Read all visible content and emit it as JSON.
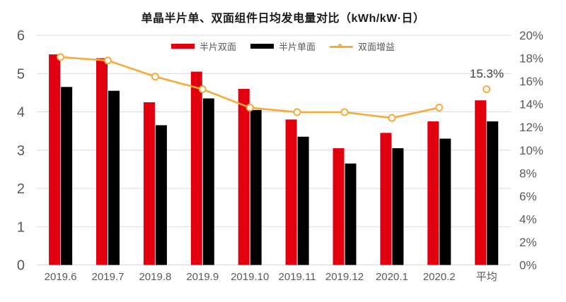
{
  "title": "单晶半片单、双面组件日均发电量对比（kWh/kW·日）",
  "annotation": {
    "text": "15.3%",
    "attached_to": "平均 line point"
  },
  "colors": {
    "bar_bifacial": "#e2000f",
    "bar_monofacial": "#000000",
    "line_gain": "#f5ab3a",
    "gridline": "#d9d9d9",
    "axis_text": "#595959",
    "xlabel_text": "#595959",
    "title_text": "#1a1a1a",
    "annotation_text": "#3f3f3f",
    "background": "#ffffff"
  },
  "chart_data": {
    "type": "bar",
    "subtype": "grouped-bar-with-secondary-axis-line",
    "title": "单晶半片单、双面组件日均发电量对比（kWh/kW·日）",
    "categories": [
      "2019.6",
      "2019.7",
      "2019.8",
      "2019.9",
      "2019.10",
      "2019.11",
      "2019.12",
      "2020.1",
      "2020.2",
      "平均"
    ],
    "series": [
      {
        "name": "半片双面",
        "type": "bar",
        "axis": "left",
        "color": "#e2000f",
        "values": [
          5.5,
          5.4,
          4.25,
          5.05,
          4.6,
          3.8,
          3.05,
          3.45,
          3.75,
          4.3
        ]
      },
      {
        "name": "半片单面",
        "type": "bar",
        "axis": "left",
        "color": "#000000",
        "values": [
          4.65,
          4.55,
          3.65,
          4.35,
          4.05,
          3.35,
          2.65,
          3.05,
          3.3,
          3.75
        ]
      },
      {
        "name": "双面增益",
        "type": "line",
        "axis": "right",
        "color": "#f5ab3a",
        "marker": "circle-white-fill",
        "values": [
          18.1,
          17.8,
          16.4,
          15.3,
          13.7,
          13.3,
          13.3,
          12.8,
          13.7,
          15.3
        ],
        "note": "line connects first 9 monthly points; 平均 point is an isolated marker labeled 15.3%"
      }
    ],
    "left_axis": {
      "min": 0,
      "max": 6,
      "step": 1,
      "ticks": [
        "0",
        "1",
        "2",
        "3",
        "4",
        "5",
        "6"
      ]
    },
    "right_axis": {
      "min": 0,
      "max": 20,
      "step": 2,
      "ticks": [
        "0%",
        "2%",
        "4%",
        "6%",
        "8%",
        "10%",
        "12%",
        "14%",
        "16%",
        "18%",
        "20%"
      ]
    },
    "grid": true,
    "legend_position": "top-center",
    "ylabel": "",
    "xlabel": ""
  }
}
